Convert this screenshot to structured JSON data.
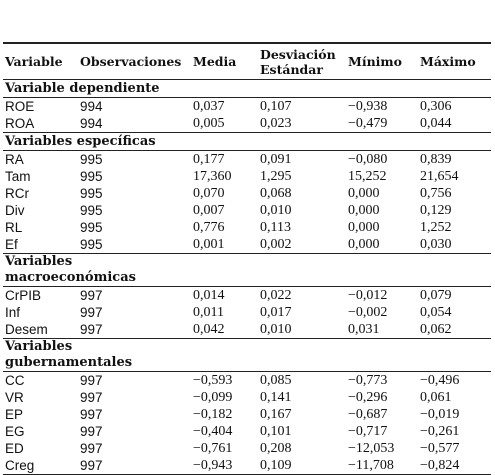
{
  "table": {
    "header": [
      "Variable",
      "Observaciones",
      "Media",
      "Desviación Estándar",
      "Mínimo",
      "Máximo"
    ],
    "sections": [
      {
        "title": "Variable dependiente",
        "rows": [
          [
            "ROE",
            "994",
            "0,037",
            "0,107",
            "−0,938",
            "0,306"
          ],
          [
            "ROA",
            "994",
            "0,005",
            "0,023",
            "−0,479",
            "0,044"
          ]
        ]
      },
      {
        "title": "Variables específicas",
        "rows": [
          [
            "RA",
            "995",
            "0,177",
            "0,091",
            "−0,080",
            "0,839"
          ],
          [
            "Tam",
            "995",
            "17,360",
            "1,295",
            "15,252",
            "21,654"
          ],
          [
            "RCr",
            "995",
            "0,070",
            "0,068",
            "0,000",
            "0,756"
          ],
          [
            "Div",
            "995",
            "0,007",
            "0,010",
            "0,000",
            "0,129"
          ],
          [
            "RL",
            "995",
            "0,776",
            "0,113",
            "0,000",
            "1,252"
          ],
          [
            "Ef",
            "995",
            "0,001",
            "0,002",
            "0,000",
            "0,030"
          ]
        ]
      },
      {
        "title": "Variables macroeconómicas",
        "rows": [
          [
            "CrPIB",
            "997",
            "0,014",
            "0,022",
            "−0,012",
            "0,079"
          ],
          [
            "Inf",
            "997",
            "0,011",
            "0,017",
            "−0,002",
            "0,054"
          ],
          [
            "Desem",
            "997",
            "0,042",
            "0,010",
            "0,031",
            "0,062"
          ]
        ]
      },
      {
        "title": "Variables gubernamentales",
        "rows": [
          [
            "CC",
            "997",
            "−0,593",
            "0,085",
            "−0,773",
            "−0,496"
          ],
          [
            "VR",
            "997",
            "−0,099",
            "0,141",
            "−0,296",
            "0,061"
          ],
          [
            "EP",
            "997",
            "−0,182",
            "0,167",
            "−0,687",
            "−0,019"
          ],
          [
            "EG",
            "997",
            "−0,404",
            "0,101",
            "−0,717",
            "−0,261"
          ],
          [
            "ED",
            "997",
            "−0,761",
            "0,208",
            "−12,053",
            "−0,577"
          ],
          [
            "Creg",
            "997",
            "−0,943",
            "0,109",
            "−11,708",
            "−0,824"
          ]
        ]
      }
    ]
  }
}
